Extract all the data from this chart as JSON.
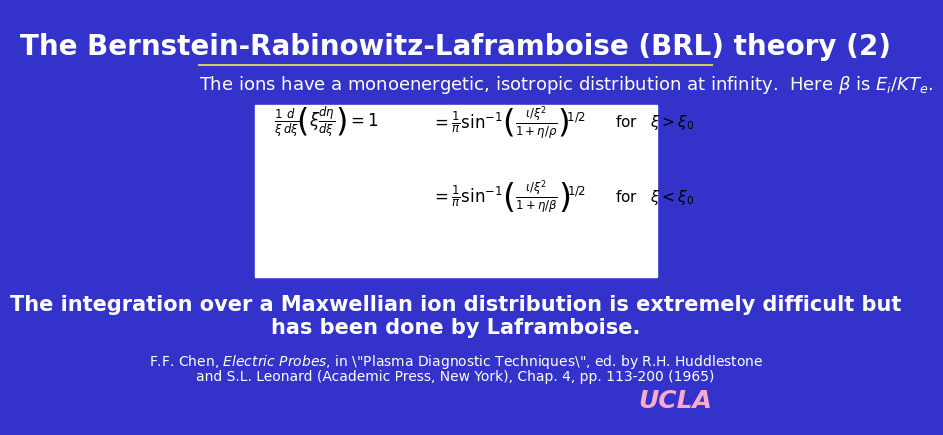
{
  "bg_color": "#3333cc",
  "title": "The Bernstein-Rabinowitz-Laframboise (BRL) theory (2)",
  "title_color": "#ffffff",
  "title_fontsize": 20,
  "line_color": "#cccc66",
  "subtitle": "The ions have a monoenergetic, isotropic distribution at infinity.  Here $\\beta$ is $E_i/KT_e$.",
  "subtitle_color": "#ffffff",
  "subtitle_fontsize": 13,
  "body_text": "The integration over a Maxwellian ion distribution is extremely difficult but\nhas been done by Laframboise.",
  "body_color": "#ffffff",
  "body_fontsize": 15,
  "ref_color": "#ffffff",
  "ref_fontsize": 10,
  "ucla_color": "#ffaacc",
  "ucla_fontsize": 18,
  "eq_box_color": "#ffffff",
  "eq_text_color": "#000000"
}
